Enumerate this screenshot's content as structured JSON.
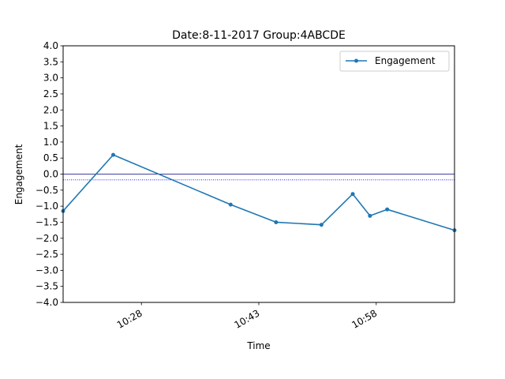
{
  "chart_data": {
    "type": "line",
    "title": "Date:8-11-2017 Group:4ABCDE",
    "xlabel": "Time",
    "ylabel": "Engagement",
    "x_ticks": [
      "10:28",
      "10:43",
      "10:58"
    ],
    "x_tick_minutes": [
      628,
      643,
      658
    ],
    "xlim_minutes": [
      618,
      668
    ],
    "ylim": [
      -4.0,
      4.0
    ],
    "y_ticks": [
      4.0,
      3.5,
      3.0,
      2.5,
      2.0,
      1.5,
      1.0,
      0.5,
      0.0,
      -0.5,
      -1.0,
      -1.5,
      -2.0,
      -2.5,
      -3.0,
      -3.5,
      -4.0
    ],
    "y_tick_labels": [
      "4.0",
      "3.5",
      "3.0",
      "2.5",
      "2.0",
      "1.5",
      "1.0",
      "0.5",
      "0.0",
      "−0.5",
      "−1.0",
      "−1.5",
      "−2.0",
      "−2.5",
      "−3.0",
      "−3.5",
      "−4.0"
    ],
    "grid": false,
    "legend_position": "upper right",
    "series": [
      {
        "name": "Engagement",
        "color": "#1f77b4",
        "x_minutes": [
          618.0,
          624.4,
          639.4,
          645.2,
          651.0,
          655.0,
          657.2,
          659.4,
          668.0
        ],
        "values": [
          -1.15,
          0.6,
          -0.95,
          -1.5,
          -1.58,
          -0.62,
          -1.3,
          -1.1,
          -1.75
        ]
      }
    ],
    "reference_lines": [
      {
        "y": 0.0,
        "style": "solid",
        "color": "#000080"
      },
      {
        "y": -0.18,
        "style": "dotted",
        "color": "#0000ff"
      }
    ]
  }
}
